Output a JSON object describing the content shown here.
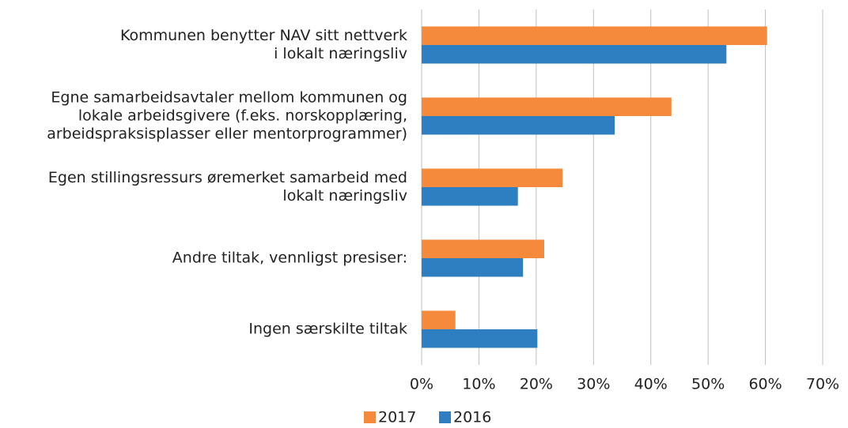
{
  "chart_data": {
    "type": "hbar",
    "categories": [
      [
        "Kommunen benytter NAV sitt nettverk",
        "i lokalt næringsliv"
      ],
      [
        "Egne samarbeidsavtaler mellom kommunen og",
        "lokale arbeidsgivere (f.eks. norskopplæring,",
        "arbeidspraksisplasser eller mentorprogrammer)"
      ],
      [
        "Egen stillingsressurs øremerket samarbeid med",
        "lokalt næringsliv"
      ],
      [
        "Andre tiltak, vennligst presiser:"
      ],
      [
        "Ingen særskilte tiltak"
      ]
    ],
    "series": [
      {
        "name": "2017",
        "color": "#f58a3c",
        "values": [
          60.3,
          43.6,
          24.6,
          21.4,
          5.9
        ]
      },
      {
        "name": "2016",
        "color": "#2e7fc1",
        "values": [
          53.2,
          33.7,
          16.8,
          17.7,
          20.2
        ]
      }
    ],
    "xlim": [
      0,
      70
    ],
    "xticks": [
      {
        "value": 0,
        "label": "0%"
      },
      {
        "value": 10,
        "label": "10%"
      },
      {
        "value": 20,
        "label": "20%"
      },
      {
        "value": 30,
        "label": "30%"
      },
      {
        "value": 40,
        "label": "40%"
      },
      {
        "value": 50,
        "label": "50%"
      },
      {
        "value": 60,
        "label": "60%"
      },
      {
        "value": 70,
        "label": "70%"
      }
    ],
    "grid": true
  }
}
